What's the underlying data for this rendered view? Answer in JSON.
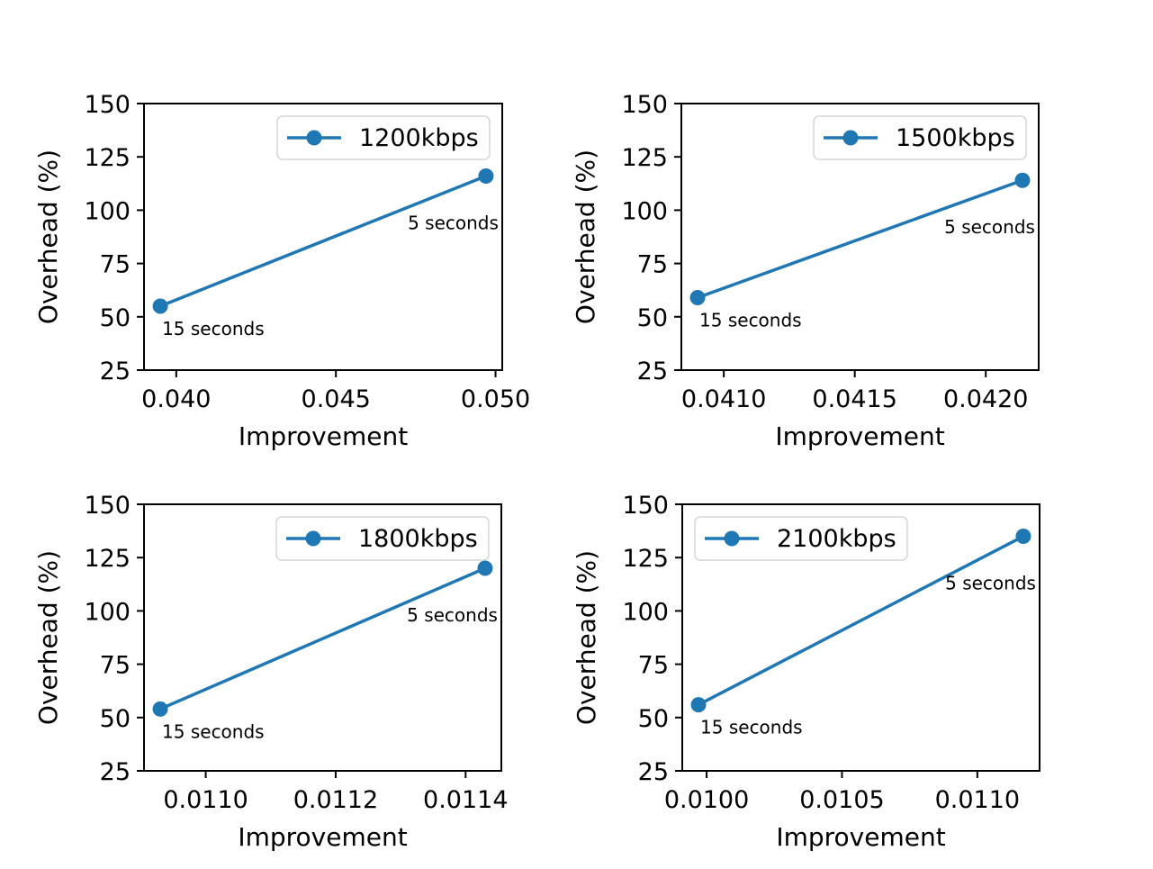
{
  "figure": {
    "background": "#ffffff",
    "accent_color": "#1f77b4"
  },
  "chart_data": [
    {
      "type": "line",
      "title": "",
      "xlabel": "Improvement",
      "ylabel": "Overhead (%)",
      "grid": false,
      "legend": {
        "label": "1200kbps",
        "position": "upper-right"
      },
      "xlim": [
        0.03899,
        0.05021
      ],
      "ylim": [
        25,
        150
      ],
      "xticks": [
        0.04,
        0.045,
        0.05
      ],
      "xtick_labels": [
        "0.040",
        "0.045",
        "0.050"
      ],
      "yticks": [
        25,
        50,
        75,
        100,
        125,
        150
      ],
      "ytick_labels": [
        "25",
        "50",
        "75",
        "100",
        "125",
        "150"
      ],
      "series": [
        {
          "name": "1200kbps",
          "color": "#1f77b4",
          "points": [
            {
              "x": 0.0395,
              "y": 55,
              "annotation": "15 seconds"
            },
            {
              "x": 0.0497,
              "y": 116,
              "annotation": "5 seconds"
            }
          ]
        }
      ]
    },
    {
      "type": "line",
      "title": "",
      "xlabel": "Improvement",
      "ylabel": "Overhead (%)",
      "grid": false,
      "legend": {
        "label": "1500kbps",
        "position": "upper-right"
      },
      "xlim": [
        0.040838,
        0.042202
      ],
      "ylim": [
        25,
        150
      ],
      "xticks": [
        0.041,
        0.0415,
        0.042
      ],
      "xtick_labels": [
        "0.0410",
        "0.0415",
        "0.0420"
      ],
      "yticks": [
        25,
        50,
        75,
        100,
        125,
        150
      ],
      "ytick_labels": [
        "25",
        "50",
        "75",
        "100",
        "125",
        "150"
      ],
      "series": [
        {
          "name": "1500kbps",
          "color": "#1f77b4",
          "points": [
            {
              "x": 0.0409,
              "y": 59,
              "annotation": "15 seconds"
            },
            {
              "x": 0.04214,
              "y": 114,
              "annotation": "5 seconds"
            }
          ]
        }
      ]
    },
    {
      "type": "line",
      "title": "",
      "xlabel": "Improvement",
      "ylabel": "Overhead (%)",
      "grid": false,
      "legend": {
        "label": "1800kbps",
        "position": "upper-right"
      },
      "xlim": [
        0.010905,
        0.011455
      ],
      "ylim": [
        25,
        150
      ],
      "xticks": [
        0.011,
        0.0112,
        0.0114
      ],
      "xtick_labels": [
        "0.0110",
        "0.0112",
        "0.0114"
      ],
      "yticks": [
        25,
        50,
        75,
        100,
        125,
        150
      ],
      "ytick_labels": [
        "25",
        "50",
        "75",
        "100",
        "125",
        "150"
      ],
      "series": [
        {
          "name": "1800kbps",
          "color": "#1f77b4",
          "points": [
            {
              "x": 0.01093,
              "y": 54,
              "annotation": "15 seconds"
            },
            {
              "x": 0.01143,
              "y": 120,
              "annotation": "5 seconds"
            }
          ]
        }
      ]
    },
    {
      "type": "line",
      "title": "",
      "xlabel": "Improvement",
      "ylabel": "Overhead (%)",
      "grid": false,
      "legend": {
        "label": "2100kbps",
        "position": "upper-left"
      },
      "xlim": [
        0.00991,
        0.01123
      ],
      "ylim": [
        25,
        150
      ],
      "xticks": [
        0.01,
        0.0105,
        0.011
      ],
      "xtick_labels": [
        "0.0100",
        "0.0105",
        "0.0110"
      ],
      "yticks": [
        25,
        50,
        75,
        100,
        125,
        150
      ],
      "ytick_labels": [
        "25",
        "50",
        "75",
        "100",
        "125",
        "150"
      ],
      "series": [
        {
          "name": "2100kbps",
          "color": "#1f77b4",
          "points": [
            {
              "x": 0.00997,
              "y": 56,
              "annotation": "15 seconds"
            },
            {
              "x": 0.01117,
              "y": 135,
              "annotation": "5 seconds"
            }
          ]
        }
      ]
    }
  ]
}
